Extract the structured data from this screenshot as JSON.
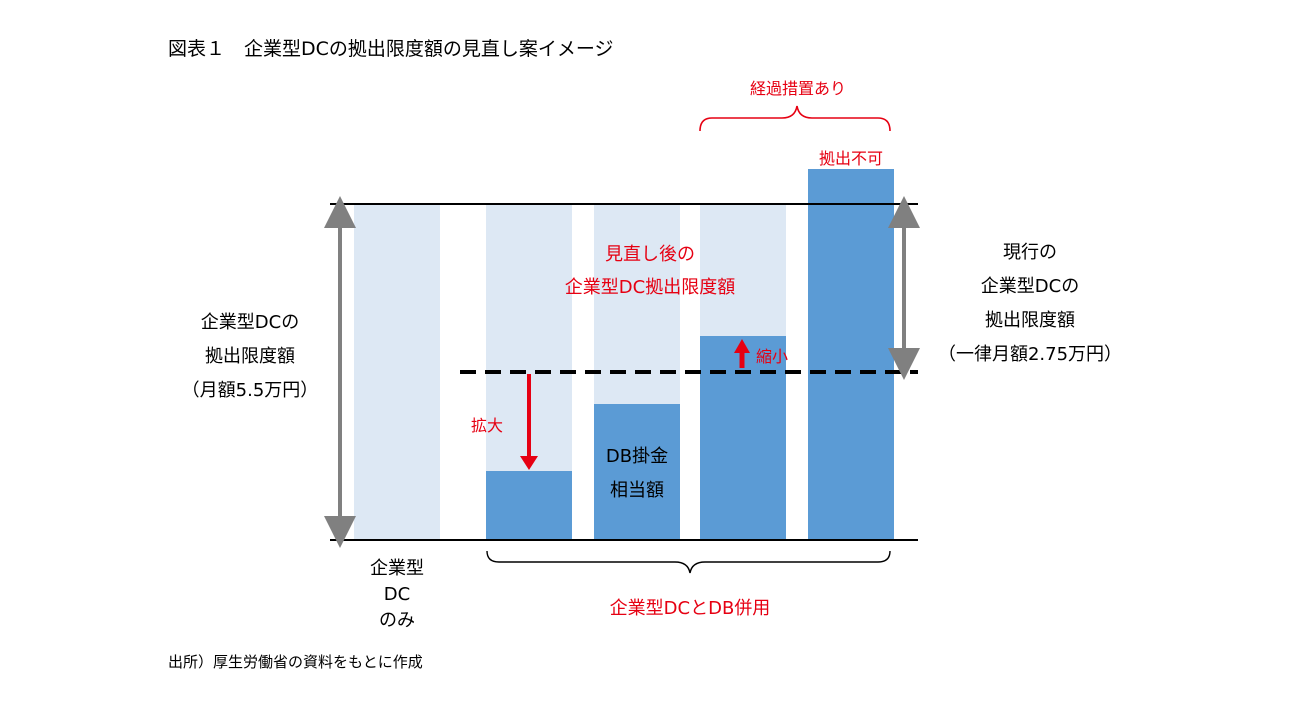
{
  "title": "図表１　企業型DCの拠出限度額の見直し案イメージ",
  "top_note": "経過措置あり",
  "over_bar_label": "拠出不可",
  "center_red_text": [
    "見直し後の",
    "企業型DC拠出限度額"
  ],
  "left_label": [
    "企業型DCの",
    "拠出限度額",
    "（月額5.5万円）"
  ],
  "right_label": [
    "現行の",
    "企業型DCの",
    "拠出限度額",
    "（一律月額2.75万円）"
  ],
  "expand_label": "拡大",
  "shrink_label": "縮小",
  "db_label": [
    "DB掛金",
    "相当額"
  ],
  "dc_only_label": [
    "企業型",
    "DC",
    "のみ"
  ],
  "combined_label": "企業型DCとDB併用",
  "source": "出所）厚生労働省の資料をもとに作成",
  "colors": {
    "light_bar": "#dde8f4",
    "dark_bar": "#5b9bd5",
    "accent_red": "#e60012",
    "gray_arrow": "#808080"
  }
}
